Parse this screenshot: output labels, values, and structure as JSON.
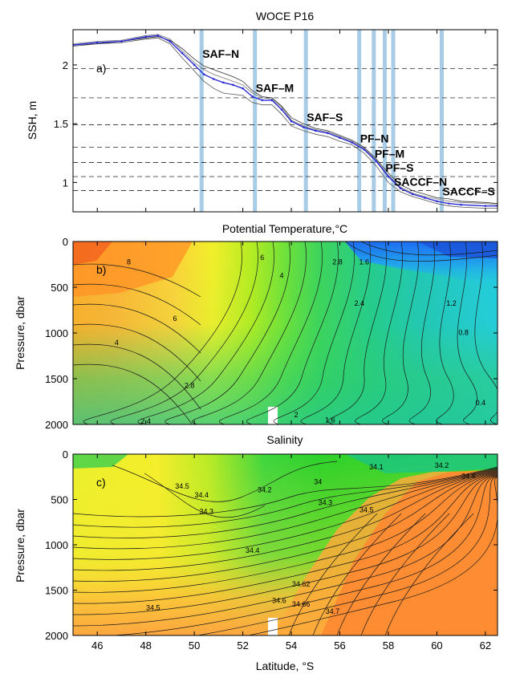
{
  "chart_data": [
    {
      "type": "line",
      "panel": "a)",
      "title": "WOCE P16",
      "xlabel": "",
      "ylabel": "SSH, m",
      "xlim": [
        45,
        62.5
      ],
      "ylim": [
        0.75,
        2.3
      ],
      "yticks": [
        1,
        1.5,
        2
      ],
      "xticks": [
        46,
        48,
        50,
        52,
        54,
        56,
        58,
        60,
        62
      ],
      "series": [
        {
          "color": "#2b2bd6",
          "x": [
            45,
            46,
            47,
            48,
            48.5,
            49,
            49.5,
            50,
            50.4,
            50.8,
            51.2,
            51.6,
            52,
            52.4,
            52.8,
            53.2,
            53.6,
            54,
            54.5,
            55,
            55.5,
            56,
            56.5,
            57,
            57.5,
            58,
            58.5,
            59,
            59.5,
            60,
            60.5,
            61,
            62,
            62.5
          ],
          "y": [
            2.17,
            2.19,
            2.2,
            2.24,
            2.25,
            2.2,
            2.1,
            2.0,
            1.92,
            1.88,
            1.85,
            1.83,
            1.8,
            1.73,
            1.7,
            1.7,
            1.62,
            1.52,
            1.47,
            1.44,
            1.42,
            1.38,
            1.34,
            1.28,
            1.18,
            1.05,
            0.95,
            0.9,
            0.87,
            0.84,
            0.82,
            0.81,
            0.8,
            0.8
          ]
        },
        {
          "color": "#333333",
          "x": [
            45,
            46,
            47,
            48,
            48.5,
            49,
            49.5,
            50,
            50.4,
            50.8,
            51.2,
            51.6,
            52,
            52.4,
            52.8,
            53.2,
            53.6,
            54,
            54.5,
            55,
            55.5,
            56,
            56.5,
            57,
            57.5,
            58,
            58.5,
            59,
            59.5,
            60,
            60.5,
            61,
            62,
            62.5
          ],
          "y": [
            2.16,
            2.18,
            2.2,
            2.23,
            2.24,
            2.21,
            2.14,
            2.05,
            1.99,
            1.96,
            1.93,
            1.9,
            1.86,
            1.78,
            1.73,
            1.72,
            1.65,
            1.55,
            1.5,
            1.46,
            1.44,
            1.4,
            1.36,
            1.3,
            1.2,
            1.08,
            0.98,
            0.93,
            0.9,
            0.87,
            0.86,
            0.84,
            0.83,
            0.82
          ]
        },
        {
          "color": "#555555",
          "x": [
            45,
            46,
            47,
            48,
            48.5,
            49,
            49.5,
            50,
            50.4,
            50.8,
            51.2,
            51.6,
            52,
            52.4,
            52.8,
            53.2,
            53.6,
            54,
            54.5,
            55,
            55.5,
            56,
            56.5,
            57,
            57.5,
            58,
            58.5,
            59,
            59.5,
            60,
            60.5,
            61,
            62,
            62.5
          ],
          "y": [
            2.17,
            2.18,
            2.19,
            2.22,
            2.23,
            2.18,
            2.06,
            1.95,
            1.86,
            1.8,
            1.76,
            1.75,
            1.74,
            1.68,
            1.66,
            1.66,
            1.58,
            1.48,
            1.44,
            1.41,
            1.39,
            1.35,
            1.32,
            1.25,
            1.14,
            1.0,
            0.92,
            0.88,
            0.85,
            0.82,
            0.8,
            0.79,
            0.78,
            0.78
          ]
        },
        {
          "color": "#777777",
          "x": [
            45,
            46,
            47,
            48,
            48.5,
            49,
            49.5,
            50,
            50.4,
            50.8,
            51.2,
            51.6,
            52,
            52.4,
            52.8,
            53.2,
            53.6,
            54,
            54.5,
            55,
            55.5,
            56,
            56.5,
            57,
            57.5,
            58,
            58.5,
            59,
            59.5,
            60,
            60.5,
            61,
            62,
            62.5
          ],
          "y": [
            2.18,
            2.2,
            2.21,
            2.25,
            2.26,
            2.22,
            2.12,
            2.02,
            1.96,
            1.92,
            1.89,
            1.86,
            1.83,
            1.76,
            1.72,
            1.71,
            1.64,
            1.53,
            1.48,
            1.45,
            1.43,
            1.39,
            1.35,
            1.29,
            1.19,
            1.06,
            0.96,
            0.91,
            0.88,
            0.86,
            0.84,
            0.83,
            0.82,
            0.81
          ]
        }
      ],
      "vertical_bars_x": [
        50.3,
        52.5,
        54.6,
        56.8,
        57.4,
        57.85,
        58.2,
        60.2
      ],
      "bar_color": "#a8cce6",
      "hlines_y": [
        1.97,
        1.72,
        1.49,
        1.3,
        1.17,
        1.05,
        0.93
      ],
      "annotations": [
        {
          "text": "SAF–N",
          "x": 50.3,
          "y": 2.02
        },
        {
          "text": "SAF–M",
          "x": 52.5,
          "y": 1.73
        },
        {
          "text": "SAF–S",
          "x": 54.6,
          "y": 1.48
        },
        {
          "text": "PF–N",
          "x": 56.8,
          "y": 1.3
        },
        {
          "text": "PF–M",
          "x": 57.4,
          "y": 1.17
        },
        {
          "text": "PF–S",
          "x": 57.85,
          "y": 1.05
        },
        {
          "text": "SACCF–N",
          "x": 58.2,
          "y": 0.93
        },
        {
          "text": "SACCF–S",
          "x": 60.2,
          "y": 0.85
        }
      ]
    },
    {
      "type": "heatmap",
      "panel": "b)",
      "title": "Potential Temperature,°C",
      "xlabel": "",
      "ylabel": "Pressure, dbar",
      "xlim": [
        45,
        62.5
      ],
      "ylim": [
        2000,
        0
      ],
      "yticks": [
        0,
        500,
        1000,
        1500,
        2000
      ],
      "xticks": [
        46,
        48,
        50,
        52,
        54,
        56,
        58,
        60,
        62
      ],
      "colorscale": "jet",
      "contour_labels": [
        {
          "text": "8",
          "x": 47.3,
          "y": 250
        },
        {
          "text": "6",
          "x": 52.8,
          "y": 200
        },
        {
          "text": "4",
          "x": 53.6,
          "y": 400
        },
        {
          "text": "2.8",
          "x": 55.9,
          "y": 250
        },
        {
          "text": "1.6",
          "x": 57,
          "y": 250
        },
        {
          "text": "6",
          "x": 49.2,
          "y": 870
        },
        {
          "text": "2.4",
          "x": 56.8,
          "y": 700
        },
        {
          "text": "1.2",
          "x": 60.6,
          "y": 700
        },
        {
          "text": "4",
          "x": 46.8,
          "y": 1130
        },
        {
          "text": "0.8",
          "x": 61.1,
          "y": 1020
        },
        {
          "text": "2.8",
          "x": 49.8,
          "y": 1600
        },
        {
          "text": "0.4",
          "x": 61.8,
          "y": 1790
        },
        {
          "text": "2",
          "x": 54.2,
          "y": 1920
        },
        {
          "text": "2.4",
          "x": 48,
          "y": 1990
        },
        {
          "text": "1.6",
          "x": 55.6,
          "y": 1980
        }
      ]
    },
    {
      "type": "heatmap",
      "panel": "c)",
      "title": "Salinity",
      "xlabel": "Latitude, °S",
      "ylabel": "Pressure, dbar",
      "xlim": [
        45,
        62.5
      ],
      "ylim": [
        2000,
        0
      ],
      "yticks": [
        0,
        500,
        1000,
        1500,
        2000
      ],
      "xticks": [
        46,
        48,
        50,
        52,
        54,
        56,
        58,
        60,
        62
      ],
      "colorscale": "jet",
      "contour_labels": [
        {
          "text": "34.5",
          "x": 49.5,
          "y": 380
        },
        {
          "text": "34.4",
          "x": 50.3,
          "y": 480
        },
        {
          "text": "34.3",
          "x": 50.5,
          "y": 660
        },
        {
          "text": "34.2",
          "x": 52.9,
          "y": 420
        },
        {
          "text": "34",
          "x": 55.1,
          "y": 330
        },
        {
          "text": "34.1",
          "x": 57.5,
          "y": 170
        },
        {
          "text": "34.3",
          "x": 55.4,
          "y": 560
        },
        {
          "text": "34.5",
          "x": 57.1,
          "y": 640
        },
        {
          "text": "34.2",
          "x": 60.2,
          "y": 150
        },
        {
          "text": "34.4",
          "x": 61.3,
          "y": 270
        },
        {
          "text": "34.4",
          "x": 52.4,
          "y": 1090
        },
        {
          "text": "34.62",
          "x": 54.4,
          "y": 1460
        },
        {
          "text": "34.6",
          "x": 53.5,
          "y": 1640
        },
        {
          "text": "34.66",
          "x": 54.4,
          "y": 1680
        },
        {
          "text": "34.7",
          "x": 55.7,
          "y": 1760
        },
        {
          "text": "34.5",
          "x": 48.3,
          "y": 1720
        }
      ]
    }
  ]
}
